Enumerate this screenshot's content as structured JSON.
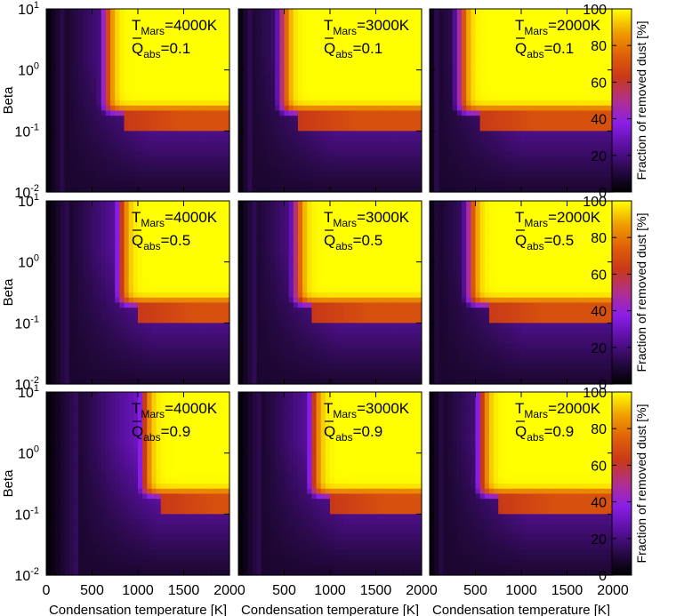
{
  "chart_data": {
    "type": "heatmap",
    "rows": 3,
    "cols": 3,
    "xlabel": "Condensation temperature [K]",
    "xlim": [
      0,
      2000
    ],
    "xticks": [
      "0",
      "500",
      "1000",
      "1500",
      "2000"
    ],
    "ylabel": "Beta",
    "ylim": [
      0.01,
      10
    ],
    "yscale": "log",
    "yticks": [
      {
        "base": "10",
        "exp": "-2"
      },
      {
        "base": "10",
        "exp": "-1"
      },
      {
        "base": "10",
        "exp": "0"
      },
      {
        "base": "10",
        "exp": "1"
      }
    ],
    "colorbar": {
      "label": "Fraction of removed dust [%]",
      "range": [
        0,
        100
      ],
      "ticks": [
        "0",
        "20",
        "40",
        "60",
        "80",
        "100"
      ],
      "colormap": [
        "#000000",
        "#2a0a4a",
        "#5a10a0",
        "#8a1ee8",
        "#b0308e",
        "#c83818",
        "#e06008",
        "#f0a000",
        "#ffff00"
      ]
    },
    "panels": [
      {
        "T_Mars": "4000K",
        "Q_abs": "0.1",
        "knee_T": 640,
        "tail_T": 220
      },
      {
        "T_Mars": "3000K",
        "Q_abs": "0.1",
        "knee_T": 470,
        "tail_T": 140
      },
      {
        "T_Mars": "2000K",
        "Q_abs": "0.1",
        "knee_T": 330,
        "tail_T": 90
      },
      {
        "T_Mars": "4000K",
        "Q_abs": "0.5",
        "knee_T": 800,
        "tail_T": 260
      },
      {
        "T_Mars": "3000K",
        "Q_abs": "0.5",
        "knee_T": 620,
        "tail_T": 190
      },
      {
        "T_Mars": "2000K",
        "Q_abs": "0.5",
        "knee_T": 430,
        "tail_T": 120
      },
      {
        "T_Mars": "4000K",
        "Q_abs": "0.9",
        "knee_T": 1050,
        "tail_T": 330
      },
      {
        "T_Mars": "3000K",
        "Q_abs": "0.9",
        "knee_T": 800,
        "tail_T": 260
      },
      {
        "T_Mars": "2000K",
        "Q_abs": "0.9",
        "knee_T": 550,
        "tail_T": 170
      }
    ],
    "annotation_T_prefix": "T",
    "annotation_T_sub": "Mars",
    "annotation_Q_prefix": "Q",
    "annotation_Q_sub": "abs"
  }
}
